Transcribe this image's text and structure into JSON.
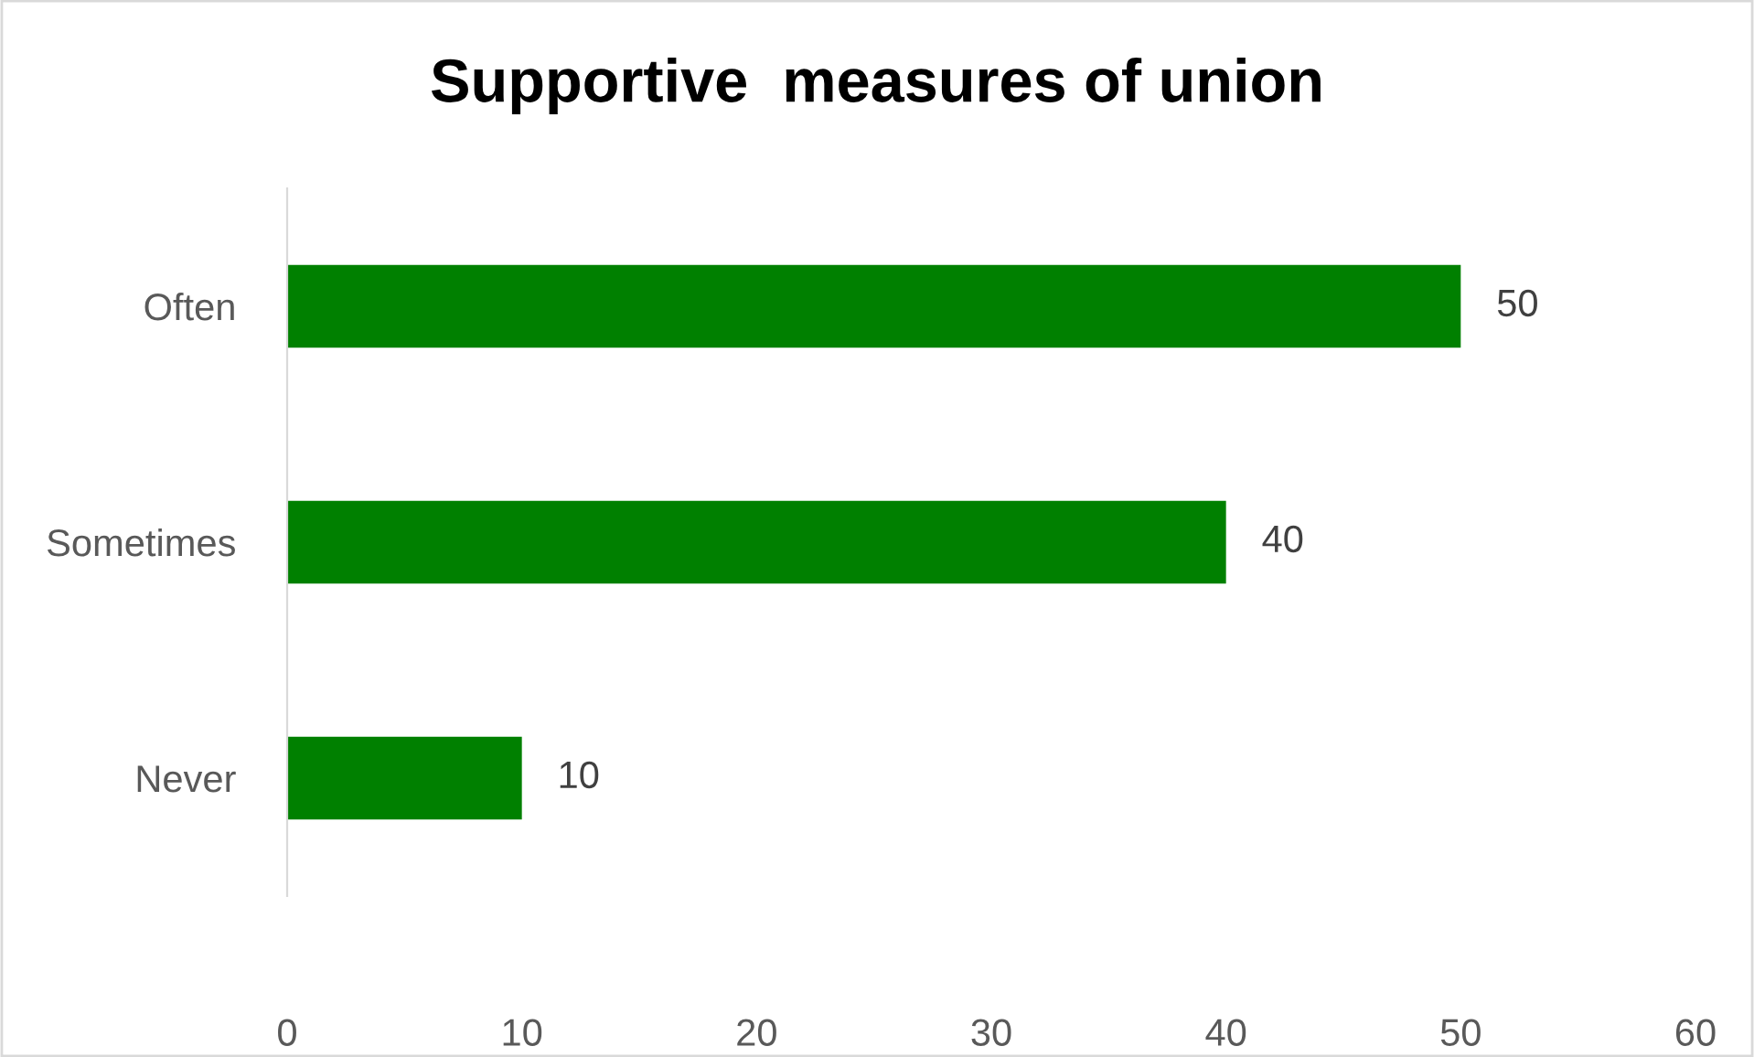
{
  "chart_data": {
    "type": "bar",
    "orientation": "horizontal",
    "title": "Supportive  measures of union",
    "categories": [
      "Often",
      "Sometimes",
      "Never"
    ],
    "values": [
      50,
      40,
      10
    ],
    "color": "#008000",
    "xlim": [
      0,
      60
    ],
    "xticks": [
      0,
      10,
      20,
      30,
      40,
      50,
      60
    ],
    "grid": false,
    "data_labels": true
  }
}
